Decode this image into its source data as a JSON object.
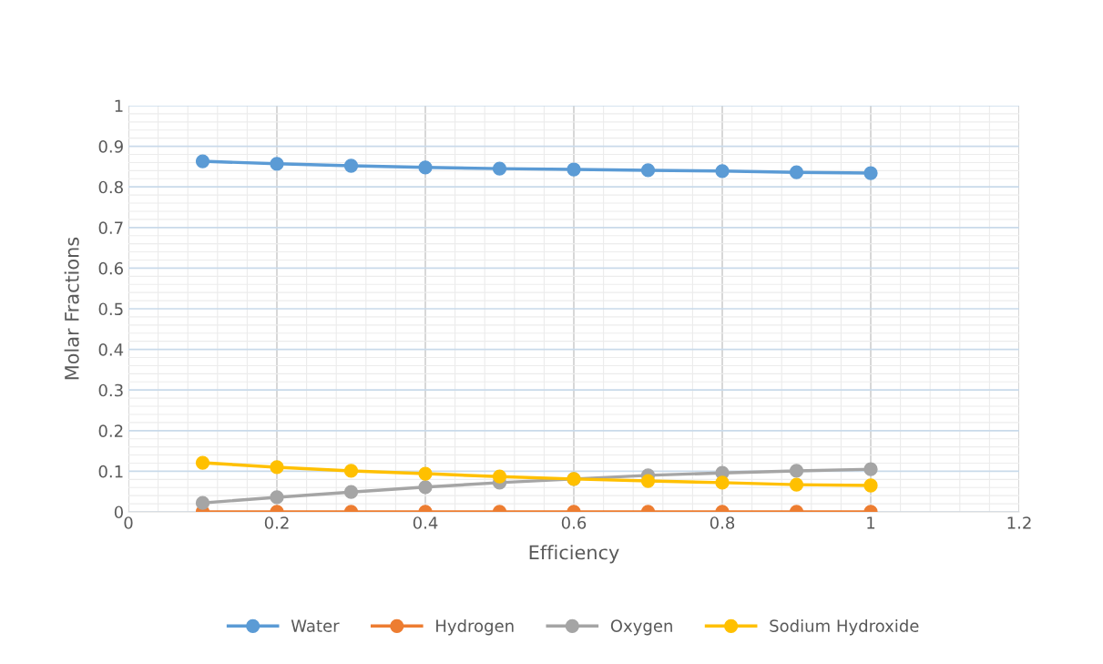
{
  "chart_data": {
    "type": "line",
    "xlabel": "Efficiency",
    "ylabel": "Molar Fractions",
    "x": [
      0.1,
      0.2,
      0.3,
      0.4,
      0.5,
      0.6,
      0.7,
      0.8,
      0.9,
      1.0
    ],
    "series": [
      {
        "name": "Water",
        "color": "#5b9bd5",
        "values": [
          0.863,
          0.857,
          0.852,
          0.848,
          0.845,
          0.843,
          0.841,
          0.839,
          0.836,
          0.834
        ]
      },
      {
        "name": "Hydrogen",
        "color": "#ed7d31",
        "values": [
          0,
          0,
          0,
          0,
          0,
          0,
          0,
          0,
          0,
          0
        ]
      },
      {
        "name": "Oxygen",
        "color": "#a5a5a5",
        "values": [
          0.022,
          0.036,
          0.049,
          0.061,
          0.072,
          0.081,
          0.09,
          0.096,
          0.101,
          0.105
        ]
      },
      {
        "name": "Sodium Hydroxide",
        "color": "#ffc000",
        "values": [
          0.121,
          0.11,
          0.101,
          0.094,
          0.087,
          0.081,
          0.076,
          0.072,
          0.067,
          0.065
        ]
      }
    ],
    "xlim": [
      0,
      1.2
    ],
    "xticks": [
      0,
      0.2,
      0.4,
      0.6,
      0.8,
      1,
      1.2
    ],
    "ylim": [
      0,
      1
    ],
    "yticks": [
      0,
      0.1,
      0.2,
      0.3,
      0.4,
      0.5,
      0.6,
      0.7,
      0.8,
      0.9,
      1
    ],
    "grid": true,
    "legend": "bottom",
    "marker": "circle",
    "line_style": "solid"
  }
}
